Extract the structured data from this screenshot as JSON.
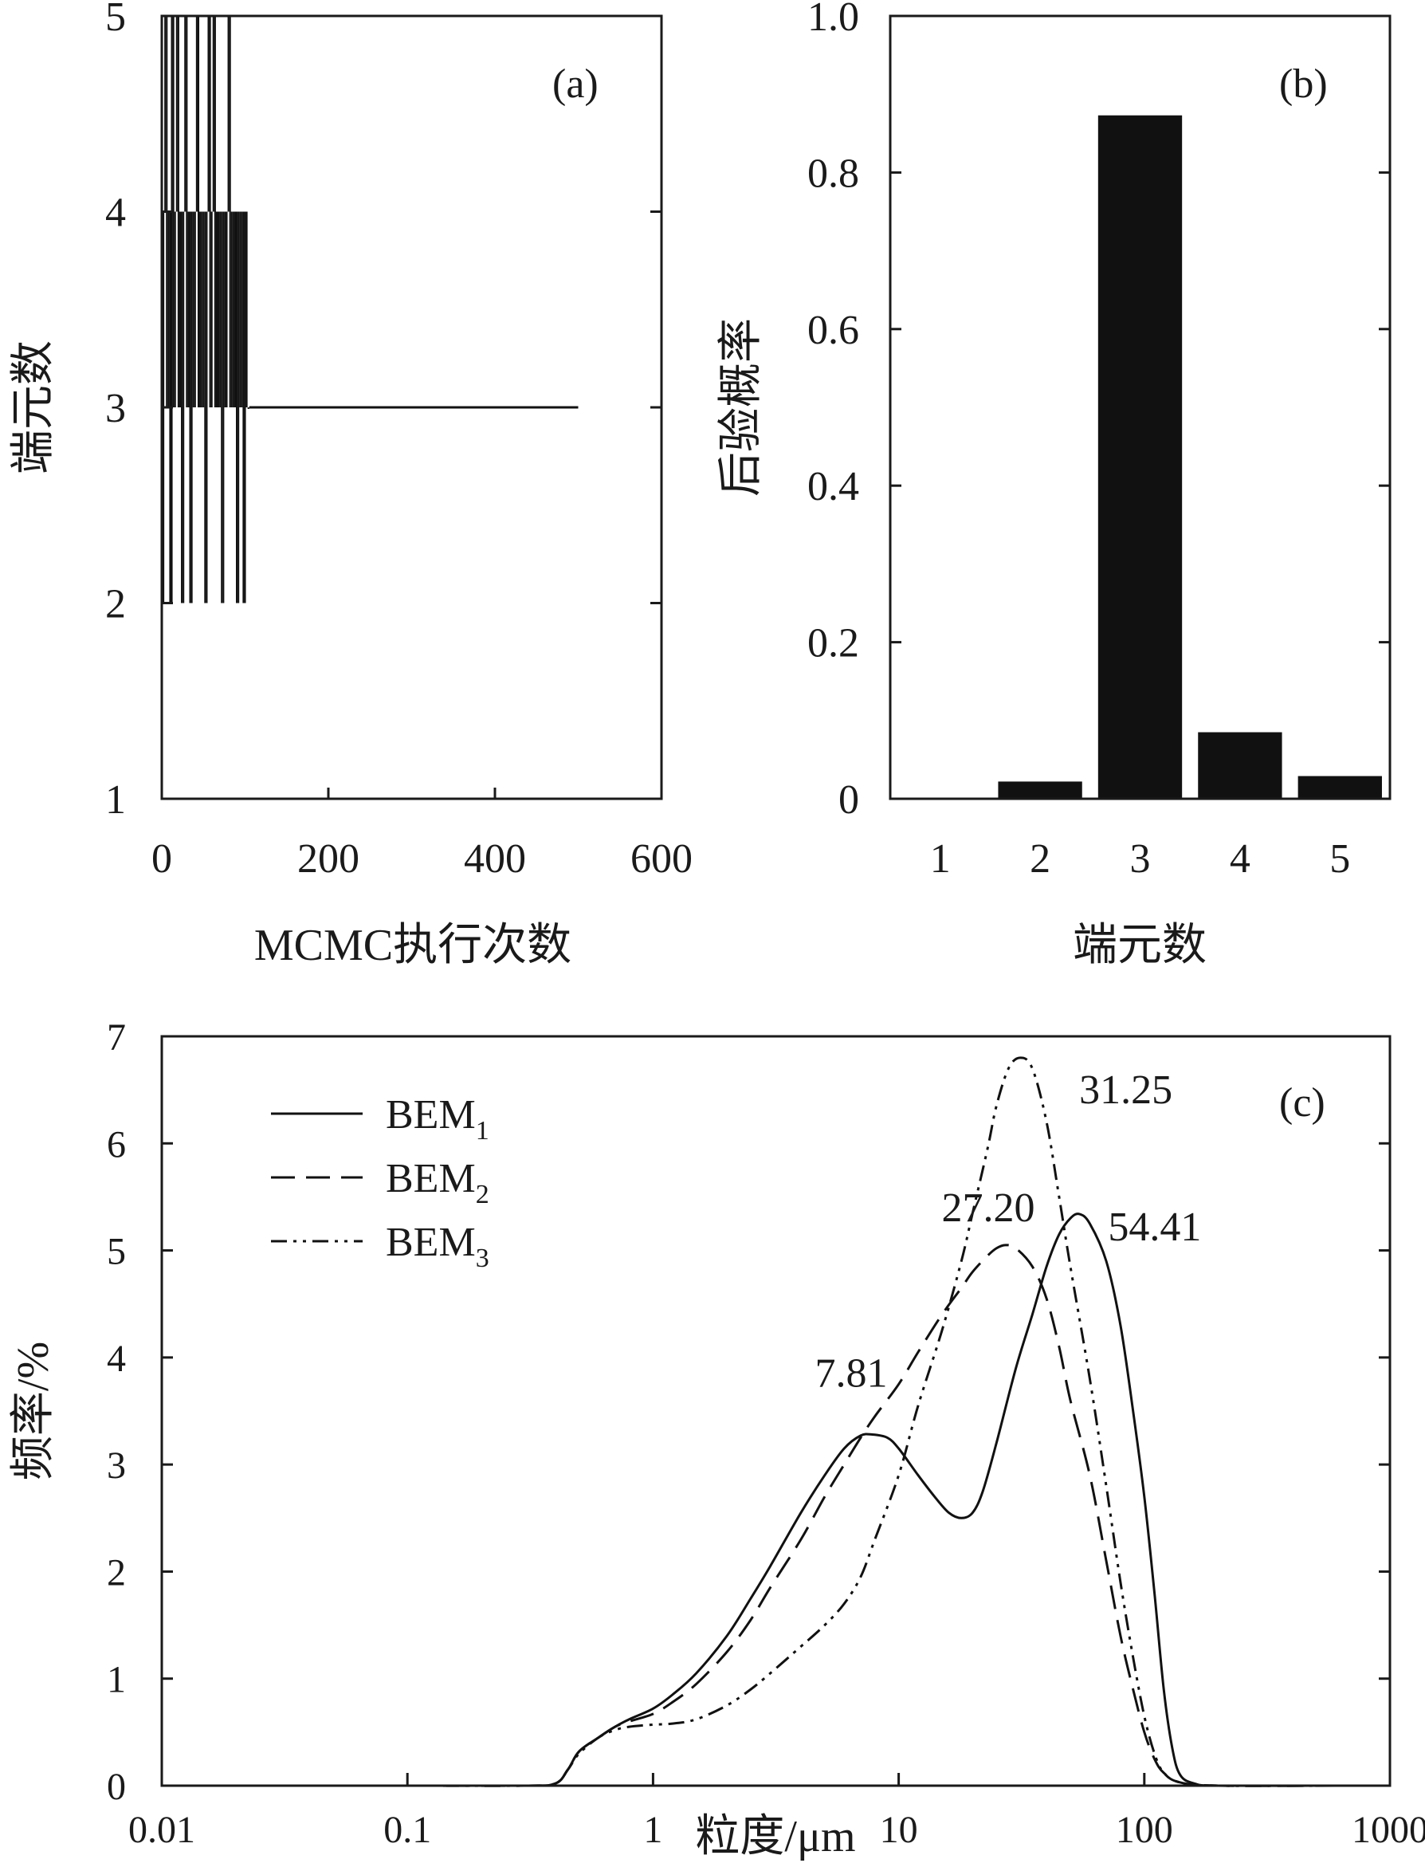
{
  "chart_data": [
    {
      "panel": "(a)",
      "type": "line",
      "xlabel": "MCMC执行次数",
      "ylabel": "端元数",
      "xlim": [
        0,
        600
      ],
      "ylim": [
        1,
        5
      ],
      "xticks": [
        "0",
        "200",
        "400",
        "600"
      ],
      "yticks": [
        "1",
        "2",
        "3",
        "4",
        "5"
      ],
      "trace_note": "Chain jumps among 2–5 end members for the first ~105 iterations, then stays at 3 up to 500.",
      "series": [
        {
          "values": [
            [
              1,
              2
            ],
            [
              3,
              4
            ],
            [
              5,
              5
            ],
            [
              7,
              3
            ],
            [
              9,
              4
            ],
            [
              11,
              2
            ],
            [
              13,
              5
            ],
            [
              15,
              3
            ],
            [
              17,
              4
            ],
            [
              19,
              5
            ],
            [
              21,
              3
            ],
            [
              23,
              4
            ],
            [
              25,
              2
            ],
            [
              27,
              4
            ],
            [
              29,
              5
            ],
            [
              31,
              3
            ],
            [
              33,
              4
            ],
            [
              35,
              2
            ],
            [
              37,
              4
            ],
            [
              39,
              3
            ],
            [
              41,
              4
            ],
            [
              43,
              5
            ],
            [
              45,
              3
            ],
            [
              47,
              4
            ],
            [
              49,
              3
            ],
            [
              51,
              4
            ],
            [
              53,
              2
            ],
            [
              55,
              4
            ],
            [
              57,
              5
            ],
            [
              59,
              3
            ],
            [
              61,
              4
            ],
            [
              63,
              5
            ],
            [
              65,
              3
            ],
            [
              67,
              4
            ],
            [
              69,
              3
            ],
            [
              71,
              4
            ],
            [
              73,
              2
            ],
            [
              75,
              4
            ],
            [
              77,
              3
            ],
            [
              79,
              4
            ],
            [
              81,
              5
            ],
            [
              83,
              3
            ],
            [
              85,
              4
            ],
            [
              87,
              3
            ],
            [
              89,
              4
            ],
            [
              91,
              2
            ],
            [
              93,
              4
            ],
            [
              95,
              3
            ],
            [
              97,
              4
            ],
            [
              99,
              2
            ],
            [
              101,
              4
            ],
            [
              103,
              3
            ],
            [
              105,
              3
            ],
            [
              500,
              3
            ]
          ]
        }
      ]
    },
    {
      "panel": "(b)",
      "type": "bar",
      "xlabel": "端元数",
      "ylabel": "后验概率",
      "categories": [
        "1",
        "2",
        "3",
        "4",
        "5"
      ],
      "values": [
        0.0,
        0.022,
        0.873,
        0.085,
        0.029
      ],
      "ylim": [
        0,
        1.0
      ],
      "yticks": [
        "0",
        "0.2",
        "0.4",
        "0.6",
        "0.8",
        "1.0"
      ]
    },
    {
      "panel": "(c)",
      "type": "line",
      "xlabel": "粒度/μm",
      "ylabel": "频率/%",
      "xscale": "log",
      "xlim": [
        0.01,
        1000
      ],
      "ylim": [
        0,
        7
      ],
      "xticks": [
        "0.01",
        "0.1",
        "1",
        "10",
        "100",
        "1000"
      ],
      "yticks": [
        "0",
        "1",
        "2",
        "3",
        "4",
        "5",
        "6",
        "7"
      ],
      "legend_position": "top-left",
      "series": [
        {
          "name": "BEM1",
          "name_base": "BEM",
          "name_sub": "1",
          "dash": "solid",
          "points": [
            [
              0.02,
              0
            ],
            [
              0.1,
              0
            ],
            [
              0.3,
              0
            ],
            [
              0.4,
              0.02
            ],
            [
              0.45,
              0.15
            ],
            [
              0.5,
              0.32
            ],
            [
              0.6,
              0.45
            ],
            [
              0.7,
              0.55
            ],
            [
              0.8,
              0.62
            ],
            [
              1.0,
              0.72
            ],
            [
              1.2,
              0.85
            ],
            [
              1.5,
              1.05
            ],
            [
              2.0,
              1.4
            ],
            [
              2.5,
              1.75
            ],
            [
              3.0,
              2.05
            ],
            [
              4.0,
              2.55
            ],
            [
              5.0,
              2.9
            ],
            [
              6.0,
              3.15
            ],
            [
              7.0,
              3.27
            ],
            [
              7.81,
              3.28
            ],
            [
              9.0,
              3.25
            ],
            [
              10.0,
              3.15
            ],
            [
              12.0,
              2.9
            ],
            [
              14.0,
              2.7
            ],
            [
              16.0,
              2.55
            ],
            [
              18.0,
              2.5
            ],
            [
              20.0,
              2.55
            ],
            [
              22.0,
              2.75
            ],
            [
              25.0,
              3.2
            ],
            [
              30.0,
              3.9
            ],
            [
              35.0,
              4.4
            ],
            [
              40.0,
              4.85
            ],
            [
              45.0,
              5.15
            ],
            [
              50.0,
              5.3
            ],
            [
              54.41,
              5.34
            ],
            [
              60.0,
              5.25
            ],
            [
              70.0,
              4.9
            ],
            [
              80.0,
              4.3
            ],
            [
              90.0,
              3.5
            ],
            [
              100.0,
              2.7
            ],
            [
              110.0,
              1.8
            ],
            [
              120.0,
              0.9
            ],
            [
              130.0,
              0.35
            ],
            [
              140.0,
              0.1
            ],
            [
              160.0,
              0.02
            ],
            [
              200.0,
              0
            ],
            [
              600.0,
              0
            ]
          ]
        },
        {
          "name": "BEM2",
          "name_base": "BEM",
          "name_sub": "2",
          "dash": "dashed",
          "points": [
            [
              0.02,
              0
            ],
            [
              0.1,
              0
            ],
            [
              0.3,
              0
            ],
            [
              0.4,
              0.02
            ],
            [
              0.45,
              0.15
            ],
            [
              0.5,
              0.32
            ],
            [
              0.6,
              0.45
            ],
            [
              0.7,
              0.55
            ],
            [
              0.8,
              0.6
            ],
            [
              1.0,
              0.67
            ],
            [
              1.2,
              0.78
            ],
            [
              1.5,
              0.95
            ],
            [
              2.0,
              1.25
            ],
            [
              2.5,
              1.55
            ],
            [
              3.0,
              1.85
            ],
            [
              4.0,
              2.3
            ],
            [
              5.0,
              2.7
            ],
            [
              6.0,
              3.0
            ],
            [
              7.0,
              3.25
            ],
            [
              8.0,
              3.45
            ],
            [
              10.0,
              3.75
            ],
            [
              12.0,
              4.05
            ],
            [
              15.0,
              4.4
            ],
            [
              18.0,
              4.65
            ],
            [
              20.0,
              4.8
            ],
            [
              23.0,
              4.95
            ],
            [
              25.0,
              5.02
            ],
            [
              27.2,
              5.05
            ],
            [
              30.0,
              5.02
            ],
            [
              35.0,
              4.85
            ],
            [
              40.0,
              4.55
            ],
            [
              45.0,
              4.1
            ],
            [
              50.0,
              3.6
            ],
            [
              60.0,
              2.9
            ],
            [
              70.0,
              2.1
            ],
            [
              80.0,
              1.4
            ],
            [
              90.0,
              0.9
            ],
            [
              100.0,
              0.5
            ],
            [
              110.0,
              0.25
            ],
            [
              120.0,
              0.12
            ],
            [
              140.0,
              0.03
            ],
            [
              200.0,
              0
            ],
            [
              600.0,
              0
            ]
          ]
        },
        {
          "name": "BEM3",
          "name_base": "BEM",
          "name_sub": "3",
          "dash": "dash-dot-dot",
          "points": [
            [
              0.02,
              0
            ],
            [
              0.1,
              0
            ],
            [
              0.3,
              0
            ],
            [
              0.4,
              0.02
            ],
            [
              0.45,
              0.15
            ],
            [
              0.5,
              0.3
            ],
            [
              0.6,
              0.45
            ],
            [
              0.7,
              0.52
            ],
            [
              0.8,
              0.55
            ],
            [
              1.0,
              0.57
            ],
            [
              1.2,
              0.58
            ],
            [
              1.5,
              0.62
            ],
            [
              2.0,
              0.75
            ],
            [
              2.5,
              0.9
            ],
            [
              3.0,
              1.05
            ],
            [
              4.0,
              1.3
            ],
            [
              5.0,
              1.5
            ],
            [
              6.0,
              1.7
            ],
            [
              7.0,
              1.95
            ],
            [
              8.0,
              2.3
            ],
            [
              10.0,
              2.9
            ],
            [
              12.0,
              3.55
            ],
            [
              15.0,
              4.25
            ],
            [
              18.0,
              4.9
            ],
            [
              20.0,
              5.35
            ],
            [
              23.0,
              5.95
            ],
            [
              25.0,
              6.35
            ],
            [
              28.0,
              6.7
            ],
            [
              31.25,
              6.8
            ],
            [
              35.0,
              6.7
            ],
            [
              40.0,
              6.2
            ],
            [
              45.0,
              5.5
            ],
            [
              50.0,
              4.85
            ],
            [
              60.0,
              3.8
            ],
            [
              70.0,
              2.8
            ],
            [
              80.0,
              1.9
            ],
            [
              90.0,
              1.2
            ],
            [
              100.0,
              0.65
            ],
            [
              110.0,
              0.3
            ],
            [
              120.0,
              0.12
            ],
            [
              140.0,
              0.03
            ],
            [
              200.0,
              0
            ],
            [
              600.0,
              0
            ]
          ]
        }
      ],
      "annotations": [
        {
          "text": "7.81",
          "x": 7.81,
          "y": 3.28
        },
        {
          "text": "27.20",
          "x": 27.2,
          "y": 5.05
        },
        {
          "text": "31.25",
          "x": 31.25,
          "y": 6.8
        },
        {
          "text": "54.41",
          "x": 54.41,
          "y": 5.34
        }
      ]
    }
  ]
}
